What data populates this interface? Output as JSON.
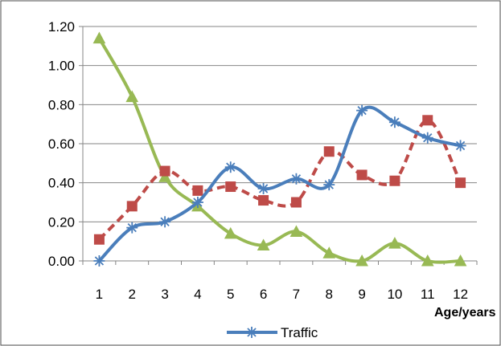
{
  "chart_data": {
    "type": "line",
    "categories": [
      "1",
      "2",
      "3",
      "4",
      "5",
      "6",
      "7",
      "8",
      "9",
      "10",
      "11",
      "12"
    ],
    "xlabel": "Age/years",
    "ylabel": "",
    "ylim": [
      0,
      1.2
    ],
    "y_ticks": [
      "0.00",
      "0.20",
      "0.40",
      "0.60",
      "0.80",
      "1.00",
      "1.20"
    ],
    "grid": "horizontal",
    "legend_position": "bottom",
    "series": [
      {
        "name": "Traffic",
        "color": "#4a7ebb",
        "marker": "asterisk",
        "line_style": "solid",
        "values": [
          0.0,
          0.17,
          0.2,
          0.3,
          0.48,
          0.37,
          0.42,
          0.39,
          0.77,
          0.71,
          0.63,
          0.59
        ]
      },
      {
        "name": "",
        "color": "#be4b48",
        "marker": "square",
        "line_style": "dashed",
        "values": [
          0.11,
          0.28,
          0.46,
          0.36,
          0.38,
          0.31,
          0.3,
          0.56,
          0.44,
          0.41,
          0.72,
          0.4
        ]
      },
      {
        "name": "",
        "color": "#98b954",
        "marker": "triangle",
        "line_style": "solid",
        "values": [
          1.14,
          0.84,
          0.43,
          0.28,
          0.14,
          0.08,
          0.15,
          0.04,
          0.0,
          0.09,
          0.0,
          0.0
        ]
      }
    ]
  }
}
